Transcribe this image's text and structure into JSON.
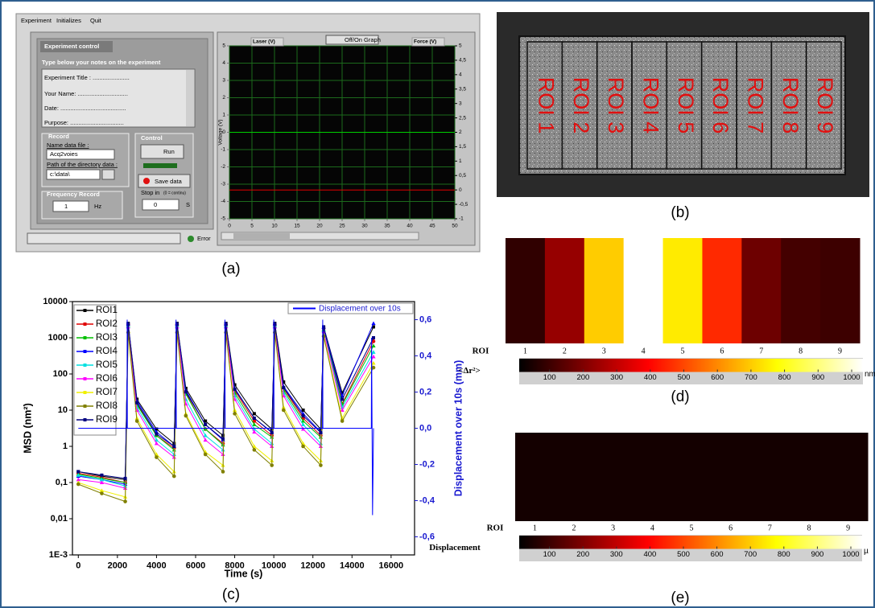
{
  "control_panel": {
    "menu": [
      "Experiment",
      "Initializes",
      "Quit"
    ],
    "title": "Experiment control",
    "notes_prompt": "Type below your notes on the experiment",
    "notes": [
      "Experiment Title : ......................",
      "Your Name: ..............................",
      "Date: .......................................",
      "Purpose: ................................"
    ],
    "record": {
      "title": "Record",
      "name_label": "Name data file :",
      "name_value": "Acq2voies",
      "path_label": "Path of the directory data :",
      "path_value": "c:\\data\\"
    },
    "control": {
      "title": "Control",
      "run": "Run",
      "save": "Save data",
      "stop_label": "Stop in",
      "stop_hint": "(0 = continu)",
      "stop_value": "0",
      "stop_unit": "S"
    },
    "frequency": {
      "title": "Frequency Record",
      "value": "1",
      "unit": "Hz"
    },
    "status": "Error",
    "graph_toggle": "Off/On Graph",
    "laser_display": "0",
    "force_display": "0"
  },
  "photo": {
    "rois": [
      "ROI 1",
      "ROI 2",
      "ROI 3",
      "ROI 4",
      "ROI 5",
      "ROI 6",
      "ROI 7",
      "ROI 8",
      "ROI 9"
    ]
  },
  "panel_labels": [
    "(a)",
    "(b)",
    "(c)",
    "(d)",
    "(e)"
  ],
  "chart_data": [
    {
      "type": "line",
      "yscale": "log",
      "xlabel": "Time (s)",
      "ylabel": "MSD (nm²)",
      "y2label": "Displacement over 10s (mm)",
      "xlim": [
        -300,
        17200
      ],
      "xticks": [
        0,
        2000,
        4000,
        6000,
        8000,
        10000,
        12000,
        14000,
        16000
      ],
      "ylim": [
        0.001,
        10000
      ],
      "yticks": [
        {
          "value": 0.001,
          "label": "1E-3"
        },
        {
          "value": 0.01,
          "label": "0,01"
        },
        {
          "value": 0.1,
          "label": "0,1"
        },
        1,
        10,
        100,
        1000,
        10000
      ],
      "y2lim": [
        -0.7,
        0.7
      ],
      "y2ticks": [
        {
          "value": -0.6,
          "label": "-0,6"
        },
        {
          "value": -0.4,
          "label": "-0,4"
        },
        {
          "value": -0.2,
          "label": "-0,2"
        },
        {
          "value": 0,
          "label": "0,0"
        },
        {
          "value": 0.2,
          "label": "0,2"
        },
        {
          "value": 0.4,
          "label": "0,4"
        },
        {
          "value": 0.6,
          "label": "0,6"
        }
      ],
      "legend": "upper left",
      "x": [
        0,
        1200,
        2400,
        2550,
        3000,
        4000,
        4900,
        5050,
        5500,
        6500,
        7400,
        7550,
        8000,
        9000,
        9900,
        10050,
        10500,
        11500,
        12400,
        12550,
        13500,
        15100
      ],
      "series": [
        {
          "name": "ROI1",
          "color": "#000000",
          "marker": "square",
          "values": [
            0.2,
            0.15,
            0.12,
            2500,
            20,
            3,
            1.2,
            2500,
            40,
            5,
            2,
            2500,
            50,
            8,
            3,
            2500,
            60,
            10,
            3,
            2000,
            30,
            2000
          ]
        },
        {
          "name": "ROI2",
          "color": "#e00000",
          "marker": "circle",
          "values": [
            0.18,
            0.14,
            0.1,
            2300,
            15,
            2,
            0.9,
            2300,
            30,
            3,
            1.2,
            2300,
            35,
            5,
            2,
            2300,
            40,
            6,
            2,
            1800,
            15,
            800
          ]
        },
        {
          "name": "ROI3",
          "color": "#00c000",
          "marker": "triangle",
          "values": [
            0.17,
            0.13,
            0.1,
            2200,
            14,
            2,
            0.8,
            2200,
            28,
            3,
            1.1,
            2200,
            30,
            4,
            1.8,
            2200,
            35,
            5,
            1.8,
            1700,
            14,
            600
          ]
        },
        {
          "name": "ROI4",
          "color": "#0000ff",
          "marker": "triangle",
          "values": [
            0.15,
            0.12,
            0.09,
            2400,
            18,
            2.5,
            1,
            2400,
            35,
            4,
            1.5,
            2400,
            40,
            6,
            2.5,
            2400,
            45,
            8,
            2.5,
            2000,
            25,
            2500
          ]
        },
        {
          "name": "ROI5",
          "color": "#00e0e0",
          "marker": "triangle",
          "values": [
            0.16,
            0.12,
            0.08,
            2100,
            12,
            1.5,
            0.6,
            2100,
            20,
            2,
            0.8,
            2100,
            25,
            3,
            1.2,
            2100,
            30,
            4,
            1.2,
            1600,
            12,
            400
          ]
        },
        {
          "name": "ROI6",
          "color": "#ff00ff",
          "marker": "triangle",
          "values": [
            0.12,
            0.1,
            0.07,
            2000,
            10,
            1.2,
            0.5,
            2000,
            15,
            1.5,
            0.6,
            2000,
            20,
            2.5,
            1,
            2000,
            25,
            3,
            1,
            1500,
            10,
            300
          ]
        },
        {
          "name": "ROI7",
          "color": "#f0f000",
          "marker": "triangle",
          "values": [
            0.1,
            0.06,
            0.04,
            1500,
            6,
            0.6,
            0.2,
            1500,
            8,
            0.7,
            0.3,
            1500,
            10,
            1,
            0.4,
            1500,
            12,
            1.2,
            0.4,
            1200,
            6,
            200
          ]
        },
        {
          "name": "ROI8",
          "color": "#808000",
          "marker": "circle",
          "values": [
            0.09,
            0.05,
            0.03,
            1400,
            5,
            0.5,
            0.15,
            1400,
            7,
            0.6,
            0.2,
            1400,
            8,
            0.8,
            0.3,
            1400,
            10,
            1,
            0.3,
            1100,
            5,
            150
          ]
        },
        {
          "name": "ROI9",
          "color": "#000080",
          "marker": "square",
          "values": [
            0.2,
            0.16,
            0.13,
            2400,
            16,
            2.2,
            1,
            2400,
            32,
            4,
            1.6,
            2400,
            38,
            6,
            2.4,
            2400,
            42,
            7,
            2.4,
            1900,
            20,
            1000
          ]
        },
        {
          "name": "Displacement over 10s",
          "color": "#0000ff",
          "axis": "y2",
          "x": [
            0,
            2490,
            2500,
            2510,
            4990,
            5000,
            5010,
            7490,
            7500,
            7510,
            9990,
            10000,
            10010,
            12490,
            12500,
            12510,
            14990,
            15000,
            15050,
            15100
          ],
          "values": [
            0,
            0,
            0.6,
            0,
            0,
            0.6,
            0,
            0,
            0.6,
            0,
            0,
            0.6,
            0,
            0,
            0.6,
            0,
            0,
            0.5,
            -0.48,
            0
          ]
        }
      ]
    },
    {
      "type": "line",
      "ylabel": "Voltage (V)",
      "xlim": [
        0,
        50
      ],
      "xticks": [
        0,
        5,
        10,
        15,
        20,
        25,
        30,
        35,
        40,
        45,
        50
      ],
      "ylim": [
        -5,
        5
      ],
      "yticks": [
        -5,
        -4,
        -3,
        -2,
        -1,
        0,
        1,
        2,
        3,
        4,
        5
      ],
      "y2lim": [
        -1,
        5
      ],
      "y2ticks": [
        -1,
        {
          "value": -0.5,
          "label": "-0,5"
        },
        0,
        {
          "value": 0.5,
          "label": "0,5"
        },
        1,
        {
          "value": 1.5,
          "label": "1,5"
        },
        2,
        {
          "value": 2.5,
          "label": "2,5"
        },
        3,
        {
          "value": 3.5,
          "label": "3,5"
        },
        4,
        {
          "value": 4.5,
          "label": "4,5"
        },
        5
      ],
      "grid": true,
      "x": [
        0,
        50
      ],
      "series": [
        {
          "name": "Laser (V)",
          "color": "#00d000",
          "values": [
            0,
            0
          ]
        },
        {
          "name": "Force (V)",
          "color": "#e00000",
          "axis": "y2",
          "values": [
            0,
            0
          ]
        }
      ]
    }
  ],
  "heatmaps": [
    {
      "roi_label": "ROI",
      "quantity_label": "<Δr²>",
      "unit": "nm",
      "rois": [
        "1",
        "2",
        "3",
        "4",
        "5",
        "6",
        "7",
        "8",
        "9"
      ],
      "values": [
        70,
        220,
        675,
        1000,
        720,
        435,
        160,
        100,
        90
      ],
      "colorbar_lim": [
        0,
        1000
      ],
      "colorbar_ticks": [
        100,
        200,
        300,
        400,
        500,
        600,
        700,
        800,
        900,
        1000
      ]
    },
    {
      "roi_label": "ROI",
      "quantity_label": "Displacement",
      "unit": "µ",
      "rois": [
        "1",
        "2",
        "3",
        "4",
        "5",
        "6",
        "7",
        "8",
        "9"
      ],
      "values": [
        30,
        30,
        30,
        30,
        30,
        30,
        30,
        30,
        30
      ],
      "colorbar_lim": [
        0,
        1000
      ],
      "colorbar_ticks": [
        100,
        200,
        300,
        400,
        500,
        600,
        700,
        800,
        900,
        1000
      ]
    }
  ]
}
